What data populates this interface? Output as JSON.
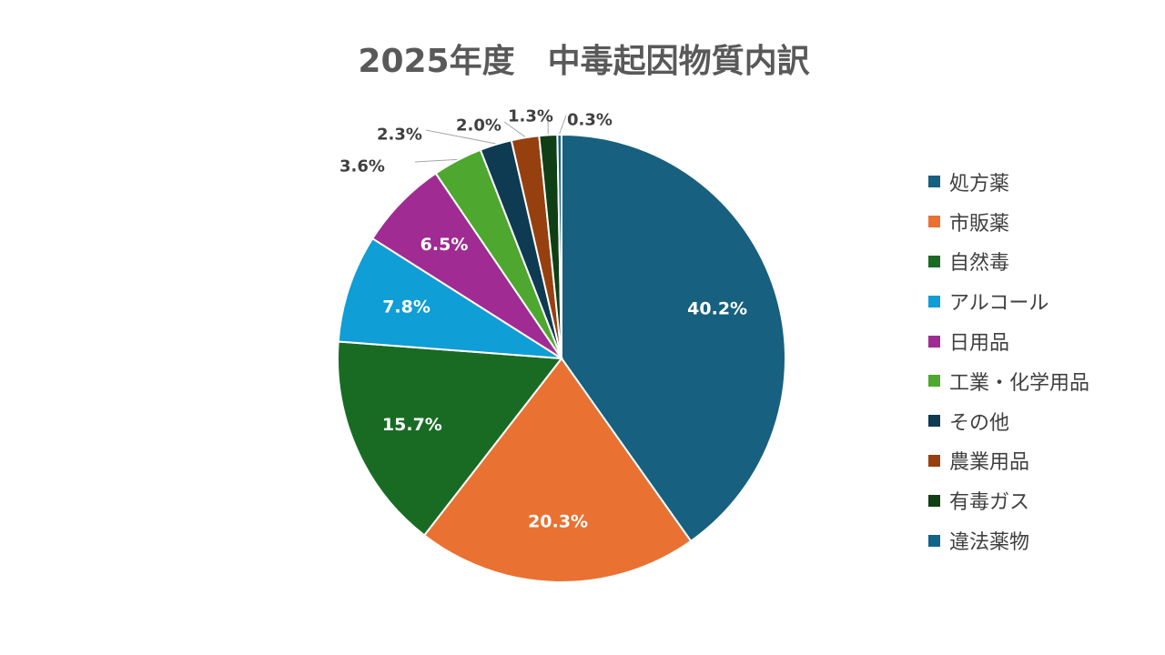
{
  "chart_data": {
    "type": "pie",
    "title": "2025年度　中毒起因物質内訳",
    "legend_position": "right",
    "slices": [
      {
        "label": "処方薬",
        "value": 40.2,
        "display": "40.2%",
        "color": "#17607F"
      },
      {
        "label": "市販薬",
        "value": 20.3,
        "display": "20.3%",
        "color": "#E97132"
      },
      {
        "label": "自然毒",
        "value": 15.7,
        "display": "15.7%",
        "color": "#196B24"
      },
      {
        "label": "アルコール",
        "value": 7.8,
        "display": "7.8%",
        "color": "#0F9ED5"
      },
      {
        "label": "日用品",
        "value": 6.5,
        "display": "6.5%",
        "color": "#A02B93"
      },
      {
        "label": "工業・化学用品",
        "value": 3.6,
        "display": "3.6%",
        "color": "#4EA72E"
      },
      {
        "label": "その他",
        "value": 2.3,
        "display": "2.3%",
        "color": "#0E3A52"
      },
      {
        "label": "農業用品",
        "value": 2.0,
        "display": "2.0%",
        "color": "#96400F"
      },
      {
        "label": "有毒ガス",
        "value": 1.3,
        "display": "1.3%",
        "color": "#103F16"
      },
      {
        "label": "違法薬物",
        "value": 0.3,
        "display": "0.3%",
        "color": "#11648A"
      }
    ]
  }
}
